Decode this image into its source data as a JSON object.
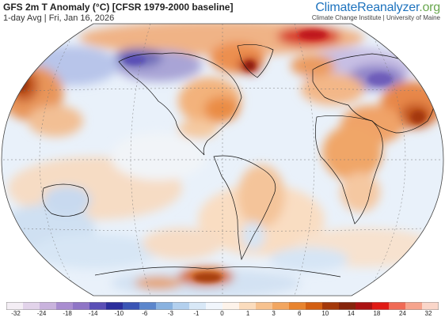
{
  "header": {
    "title": "GFS 2m T Anomaly (°C) [CFSR 1979-2000 baseline]",
    "subtitle": "1-day Avg | Fri, Jan 16, 2026"
  },
  "brand": {
    "name_part1": "ClimateReanalyzer",
    "name_part2": ".org",
    "credit": "Climate Change Institute | University of Maine",
    "color_part1": "#1e73be",
    "color_part2": "#6aa84f"
  },
  "map": {
    "projection": "Robinson (global)",
    "features": [
      "temperature-anomaly-field",
      "coastlines",
      "country-borders",
      "us-state-borders",
      "graticule"
    ]
  },
  "colorbar": {
    "tick_labels": [
      "-32",
      "-24",
      "-18",
      "-14",
      "-10",
      "-6",
      "-3",
      "-1",
      "0",
      "1",
      "3",
      "6",
      "10",
      "14",
      "18",
      "24",
      "32"
    ],
    "colors": [
      "#f4eef5",
      "#e2d3ea",
      "#c9b3dd",
      "#a98dd0",
      "#8f75c6",
      "#5a4fb6",
      "#2b2e9c",
      "#3a55b5",
      "#5b86cc",
      "#89b2e0",
      "#b3d0ee",
      "#d8e8f7",
      "#f1f6fc",
      "#fdf3ea",
      "#fbdcbd",
      "#f7c28f",
      "#f2a660",
      "#e8842f",
      "#d35f12",
      "#a4380a",
      "#85240b",
      "#ab1212",
      "#e01a14",
      "#f06a55",
      "#f6a48d",
      "#fad6c9"
    ]
  }
}
